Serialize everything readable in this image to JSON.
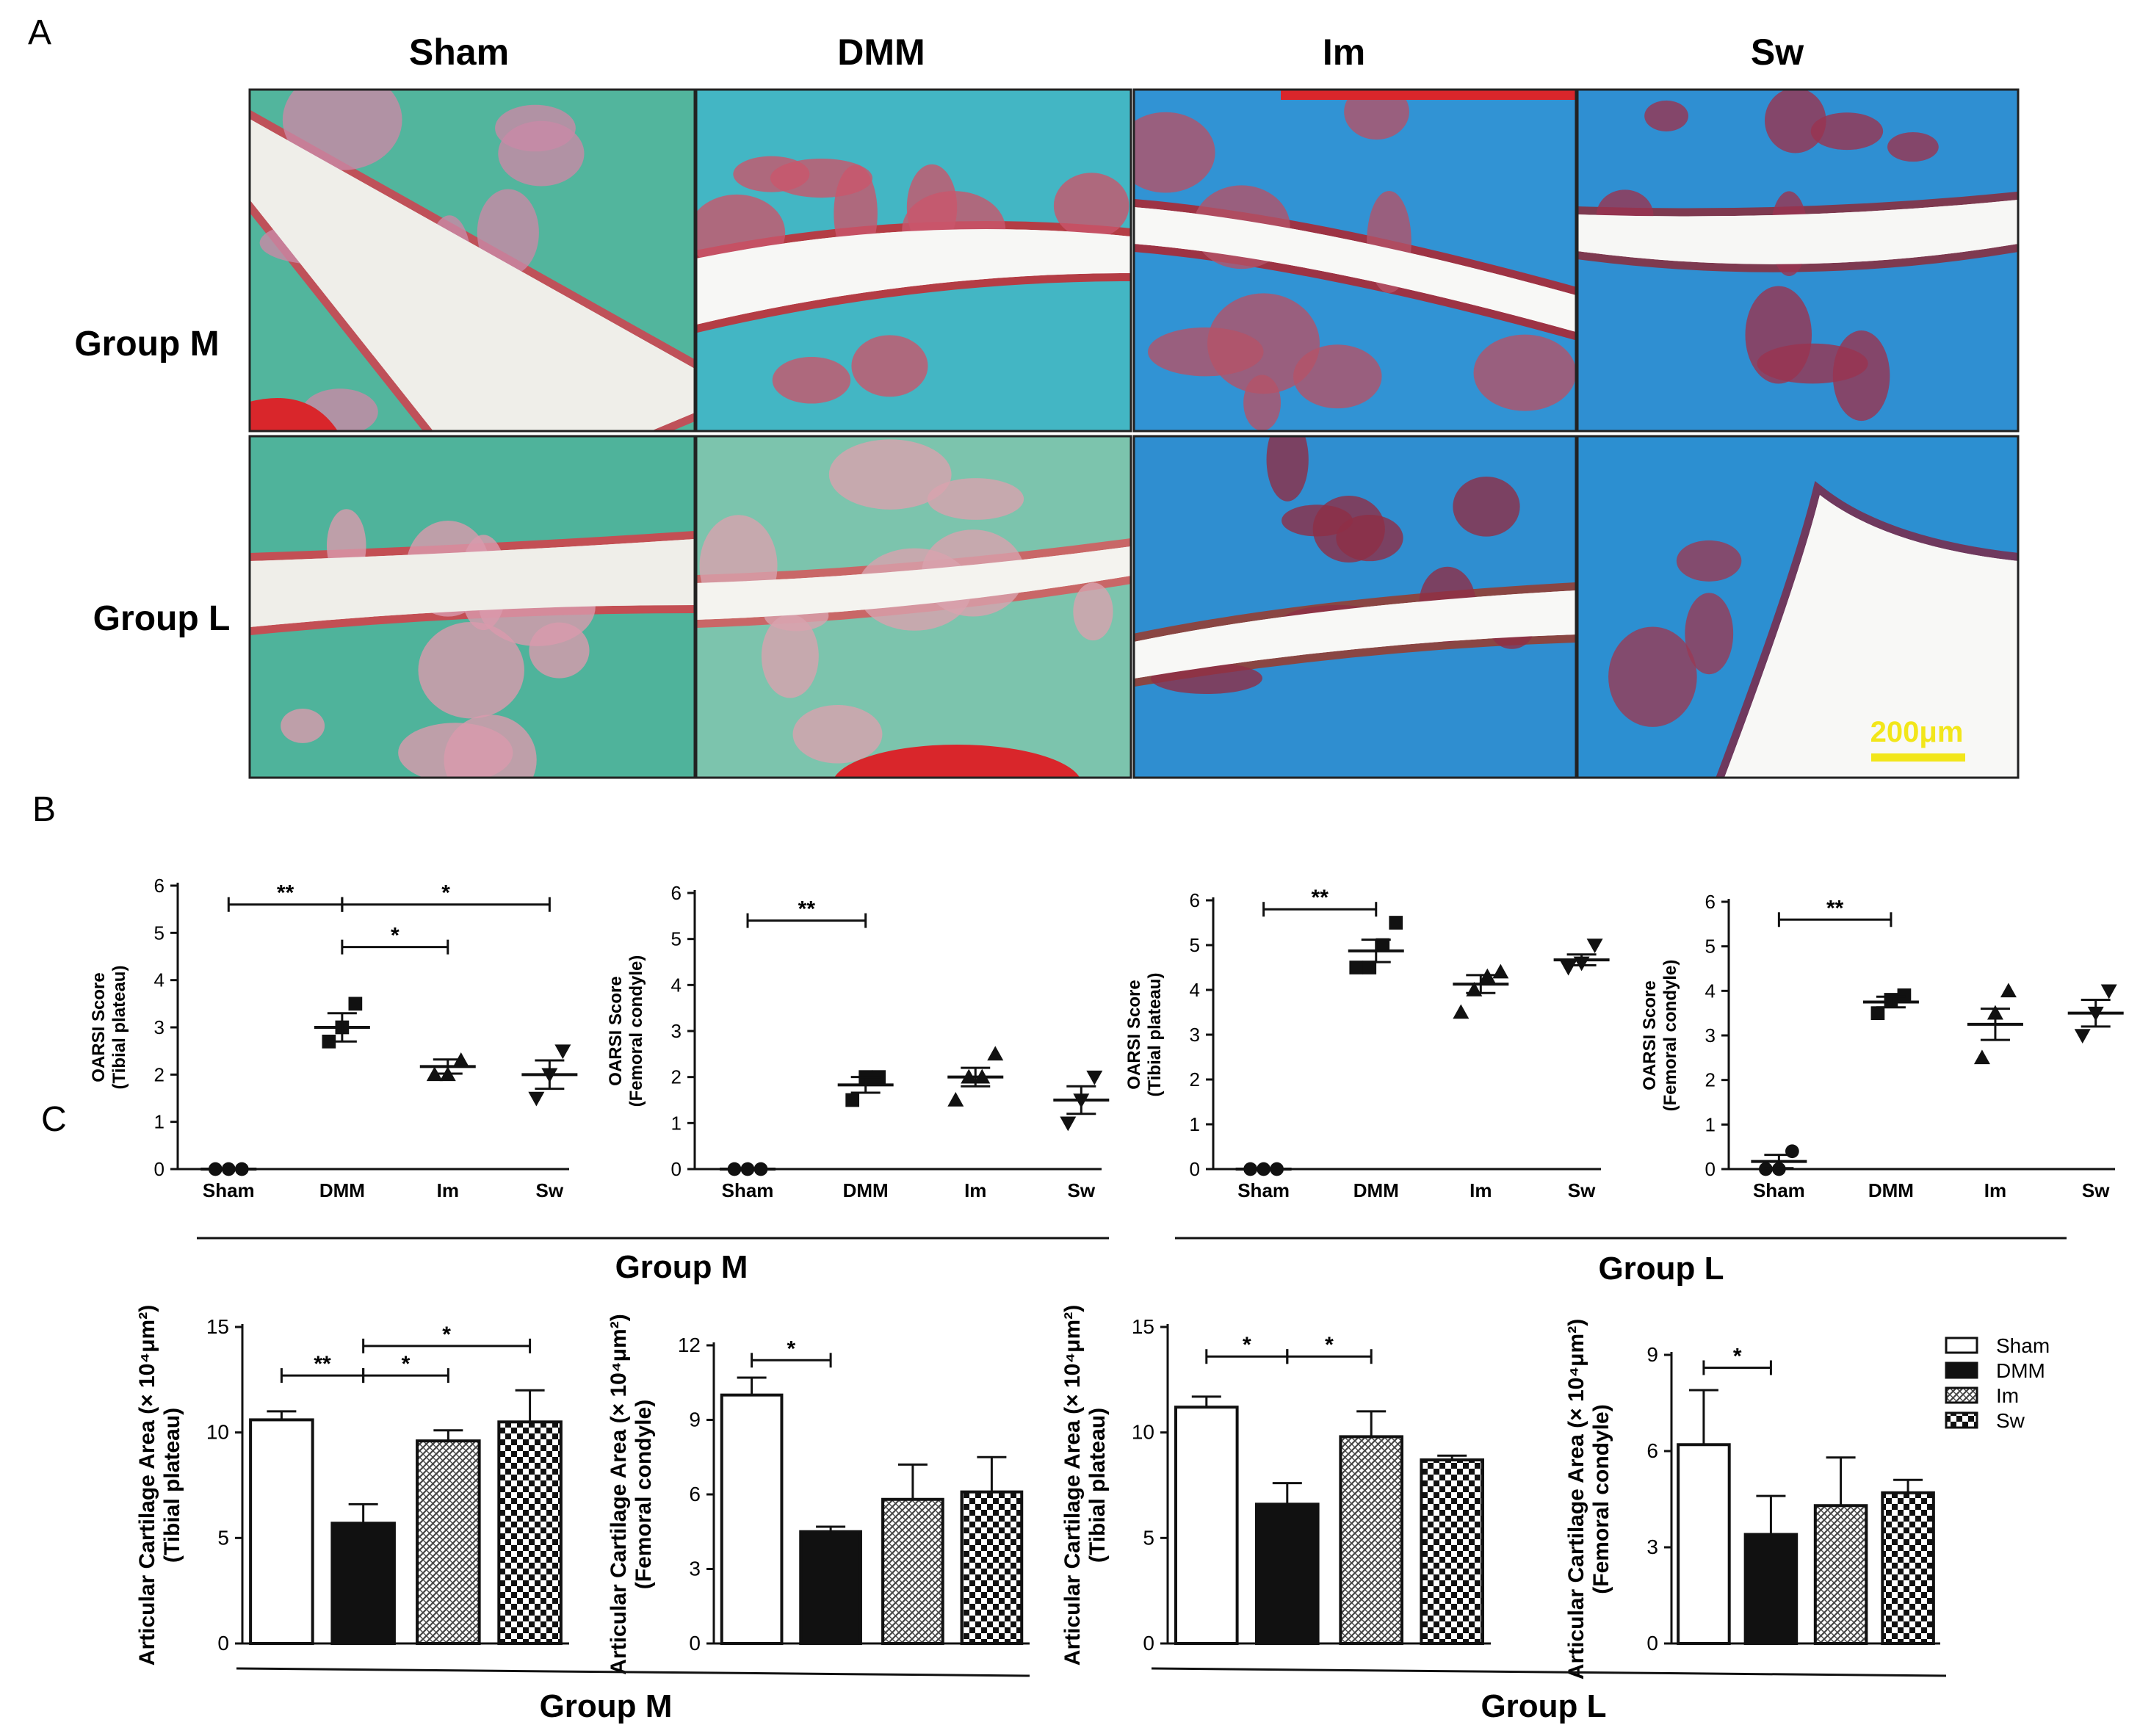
{
  "panels": {
    "A": "A",
    "B": "B",
    "C": "C"
  },
  "micrographs": {
    "columns": [
      "Sham",
      "DMM",
      "Im",
      "Sw"
    ],
    "rows": [
      "Group M",
      "Group L"
    ],
    "scale_bar": "200μm",
    "tiles": [
      {
        "row": 0,
        "col": 0,
        "stain": "safranin-fast-green",
        "content": "knee joint section, red cartilage / green bone"
      },
      {
        "row": 0,
        "col": 1,
        "stain": "safranin-fast-green",
        "content": "knee joint section, blue-green with red marrow"
      },
      {
        "row": 0,
        "col": 2,
        "stain": "safranin-fast-green",
        "content": "knee joint section, blue bone, red marrow"
      },
      {
        "row": 0,
        "col": 3,
        "stain": "safranin-fast-green",
        "content": "knee joint section, blue with red cartilage band"
      },
      {
        "row": 1,
        "col": 0,
        "stain": "safranin-fast-green",
        "content": "knee joint section, green with red cartilage"
      },
      {
        "row": 1,
        "col": 1,
        "stain": "safranin-fast-green",
        "content": "knee joint section, pale green"
      },
      {
        "row": 1,
        "col": 2,
        "stain": "safranin-fast-green",
        "content": "knee joint section, blue with red-brown cartilage"
      },
      {
        "row": 1,
        "col": 3,
        "stain": "safranin-fast-green",
        "content": "knee joint section, blue with scale bar"
      }
    ],
    "colors": {
      "green": "#4fb39c",
      "blue": "#2b8fd0",
      "red": "#c23a4a",
      "pink": "#cf8aa0",
      "background": "#f0eee8"
    }
  },
  "group_labels": {
    "B_left": "Group M",
    "B_right": "Group L",
    "C_left": "Group M",
    "C_right": "Group L"
  },
  "legend": {
    "items": [
      {
        "label": "Sham",
        "fill": "white"
      },
      {
        "label": "DMM",
        "fill": "black"
      },
      {
        "label": "Im",
        "fill": "hatch"
      },
      {
        "label": "Sw",
        "fill": "checker"
      }
    ]
  },
  "chart_data": [
    {
      "id": "B1",
      "type": "scatter",
      "ylabel_line1": "OARSI Score",
      "ylabel_line2": "(Tibial plateau)",
      "categories": [
        "Sham",
        "DMM",
        "Im",
        "Sw"
      ],
      "ylim": [
        0,
        6
      ],
      "yticks": [
        "0",
        "1",
        "2",
        "3",
        "4",
        "5",
        "6"
      ],
      "series": [
        {
          "points": [
            0,
            0,
            0
          ],
          "mean": 0,
          "sem": 0,
          "marker": "circle"
        },
        {
          "points": [
            2.7,
            3.0,
            3.5
          ],
          "mean": 3.0,
          "sem": 0.3,
          "marker": "square"
        },
        {
          "points": [
            2.0,
            2.0,
            2.3
          ],
          "mean": 2.17,
          "sem": 0.15,
          "marker": "triangle"
        },
        {
          "points": [
            1.5,
            2.0,
            2.5
          ],
          "mean": 2.0,
          "sem": 0.3,
          "marker": "invtriangle"
        }
      ],
      "brackets": [
        {
          "from": 0,
          "to": 1,
          "y": 5.6,
          "label": "**"
        },
        {
          "from": 1,
          "to": 3,
          "y": 5.6,
          "label": "*"
        },
        {
          "from": 1,
          "to": 2,
          "y": 4.7,
          "label": "*"
        }
      ]
    },
    {
      "id": "B2",
      "type": "scatter",
      "ylabel_line1": "OARSI Score",
      "ylabel_line2": "(Femoral condyle)",
      "categories": [
        "Sham",
        "DMM",
        "Im",
        "Sw"
      ],
      "ylim": [
        0,
        6
      ],
      "yticks": [
        "0",
        "1",
        "2",
        "3",
        "4",
        "5",
        "6"
      ],
      "series": [
        {
          "points": [
            0,
            0,
            0
          ],
          "mean": 0,
          "sem": 0,
          "marker": "circle"
        },
        {
          "points": [
            1.5,
            2.0,
            2.0
          ],
          "mean": 1.83,
          "sem": 0.17,
          "marker": "square"
        },
        {
          "points": [
            1.5,
            2.0,
            2.0,
            2.5
          ],
          "mean": 2.0,
          "sem": 0.2,
          "marker": "triangle"
        },
        {
          "points": [
            1.0,
            1.5,
            2.0
          ],
          "mean": 1.5,
          "sem": 0.3,
          "marker": "invtriangle"
        }
      ],
      "brackets": [
        {
          "from": 0,
          "to": 1,
          "y": 5.4,
          "label": "**"
        }
      ]
    },
    {
      "id": "B3",
      "type": "scatter",
      "ylabel_line1": "OARSI Score",
      "ylabel_line2": "(Tibial plateau)",
      "categories": [
        "Sham",
        "DMM",
        "Im",
        "Sw"
      ],
      "ylim": [
        0,
        6
      ],
      "yticks": [
        "0",
        "1",
        "2",
        "3",
        "4",
        "5",
        "6"
      ],
      "series": [
        {
          "points": [
            0,
            0,
            0
          ],
          "mean": 0,
          "sem": 0,
          "marker": "circle"
        },
        {
          "points": [
            4.5,
            4.5,
            5.0,
            5.5
          ],
          "mean": 4.87,
          "sem": 0.25,
          "marker": "square"
        },
        {
          "points": [
            3.5,
            4.0,
            4.3,
            4.4
          ],
          "mean": 4.13,
          "sem": 0.2,
          "marker": "triangle"
        },
        {
          "points": [
            4.5,
            4.6,
            5.0
          ],
          "mean": 4.67,
          "sem": 0.12,
          "marker": "invtriangle"
        }
      ],
      "brackets": [
        {
          "from": 0,
          "to": 1,
          "y": 5.8,
          "label": "**"
        }
      ]
    },
    {
      "id": "B4",
      "type": "scatter",
      "ylabel_line1": "OARSI Score",
      "ylabel_line2": "(Femoral condyle)",
      "categories": [
        "Sham",
        "DMM",
        "Im",
        "Sw"
      ],
      "ylim": [
        0,
        6
      ],
      "yticks": [
        "0",
        "1",
        "2",
        "3",
        "4",
        "5",
        "6"
      ],
      "series": [
        {
          "points": [
            0,
            0,
            0.4
          ],
          "mean": 0.17,
          "sem": 0.15,
          "marker": "circle"
        },
        {
          "points": [
            3.5,
            3.8,
            3.9
          ],
          "mean": 3.75,
          "sem": 0.12,
          "marker": "square"
        },
        {
          "points": [
            2.5,
            3.5,
            4.0
          ],
          "mean": 3.25,
          "sem": 0.35,
          "marker": "triangle"
        },
        {
          "points": [
            3.0,
            3.5,
            4.0
          ],
          "mean": 3.5,
          "sem": 0.3,
          "marker": "invtriangle"
        }
      ],
      "brackets": [
        {
          "from": 0,
          "to": 1,
          "y": 5.6,
          "label": "**"
        }
      ]
    },
    {
      "id": "C1",
      "type": "bar",
      "ylabel_line1": "Articular Cartilage Area (× 10⁴μm²)",
      "ylabel_line2": "(Tibial plateau)",
      "categories": [
        "Sham",
        "DMM",
        "Im",
        "Sw"
      ],
      "ylim": [
        0,
        15
      ],
      "yticks": [
        "0",
        "5",
        "10",
        "15"
      ],
      "values": [
        10.6,
        5.7,
        9.6,
        10.5
      ],
      "errors": [
        0.4,
        0.9,
        0.5,
        1.5
      ],
      "brackets": [
        {
          "from": 0,
          "to": 1,
          "y": 12.7,
          "label": "**"
        },
        {
          "from": 1,
          "to": 2,
          "y": 12.7,
          "label": "*"
        },
        {
          "from": 1,
          "to": 3,
          "y": 14.1,
          "label": "*"
        }
      ]
    },
    {
      "id": "C2",
      "type": "bar",
      "ylabel_line1": "Articular Cartilage Area (× 10⁴μm²)",
      "ylabel_line2": "(Femoral condyle)",
      "categories": [
        "Sham",
        "DMM",
        "Im",
        "Sw"
      ],
      "ylim": [
        0,
        12
      ],
      "yticks": [
        "0",
        "3",
        "6",
        "9",
        "12"
      ],
      "values": [
        10.0,
        4.5,
        5.8,
        6.1
      ],
      "errors": [
        0.7,
        0.2,
        1.4,
        1.4
      ],
      "brackets": [
        {
          "from": 0,
          "to": 1,
          "y": 11.4,
          "label": "*"
        }
      ]
    },
    {
      "id": "C3",
      "type": "bar",
      "ylabel_line1": "Articular Cartilage Area (× 10⁴μm²)",
      "ylabel_line2": "(Tibial plateau)",
      "categories": [
        "Sham",
        "DMM",
        "Im",
        "Sw"
      ],
      "ylim": [
        0,
        15
      ],
      "yticks": [
        "0",
        "5",
        "10",
        "15"
      ],
      "values": [
        11.2,
        6.6,
        9.8,
        8.7
      ],
      "errors": [
        0.5,
        1.0,
        1.2,
        0.2
      ],
      "brackets": [
        {
          "from": 0,
          "to": 1,
          "y": 13.6,
          "label": "*"
        },
        {
          "from": 1,
          "to": 2,
          "y": 13.6,
          "label": "*"
        }
      ]
    },
    {
      "id": "C4",
      "type": "bar",
      "ylabel_line1": "Articular Cartilage Area (× 10⁴μm²)",
      "ylabel_line2": "(Femoral condyle)",
      "categories": [
        "Sham",
        "DMM",
        "Im",
        "Sw"
      ],
      "ylim": [
        0,
        9
      ],
      "yticks": [
        "0",
        "3",
        "6",
        "9"
      ],
      "values": [
        6.2,
        3.4,
        4.3,
        4.7
      ],
      "errors": [
        1.7,
        1.2,
        1.5,
        0.4
      ],
      "brackets": [
        {
          "from": 0,
          "to": 1,
          "y": 8.6,
          "label": "*"
        }
      ]
    }
  ]
}
